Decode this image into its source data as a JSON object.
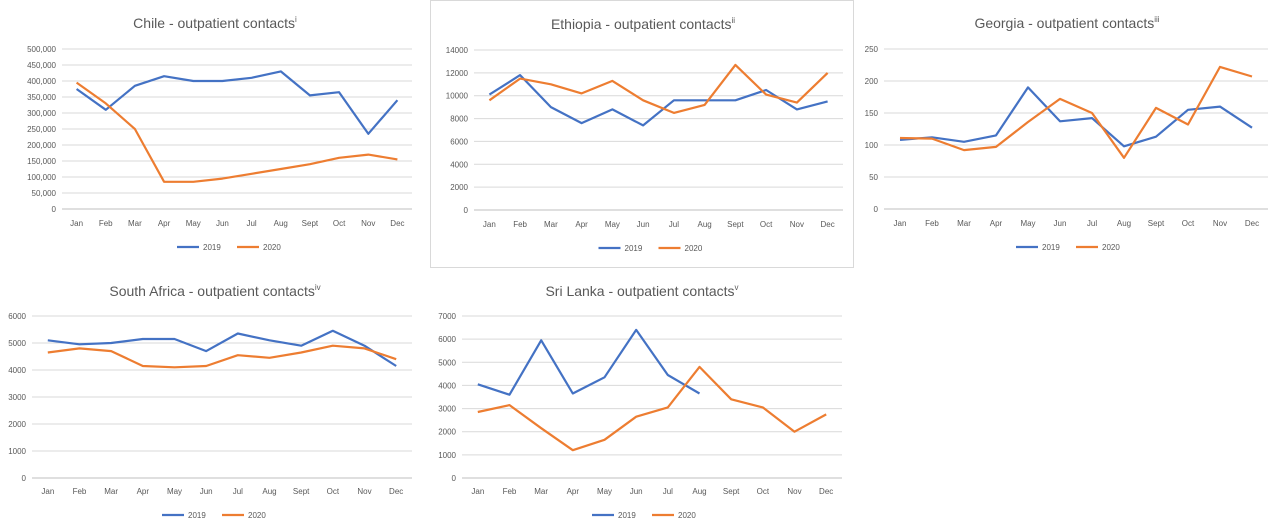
{
  "colors": {
    "s2019": "#4472c4",
    "s2020": "#ed7d31"
  },
  "chart_data": [
    {
      "type": "line",
      "title": "Chile - outpatient contacts",
      "title_sup": "i",
      "categories": [
        "Jan",
        "Feb",
        "Mar",
        "Apr",
        "May",
        "Jun",
        "Jul",
        "Aug",
        "Sept",
        "Oct",
        "Nov",
        "Dec"
      ],
      "ylim": [
        0,
        500000
      ],
      "yticks": [
        0,
        50000,
        100000,
        150000,
        200000,
        250000,
        300000,
        350000,
        400000,
        450000,
        500000
      ],
      "ytick_labels": [
        "0",
        "50,000",
        "100,000",
        "150,000",
        "200,000",
        "250,000",
        "300,000",
        "350,000",
        "400,000",
        "450,000",
        "500,000"
      ],
      "series": [
        {
          "name": "2019",
          "values": [
            375000,
            310000,
            385000,
            415000,
            400000,
            400000,
            410000,
            430000,
            355000,
            365000,
            235000,
            340000
          ]
        },
        {
          "name": "2020",
          "values": [
            395000,
            330000,
            250000,
            85000,
            85000,
            95000,
            110000,
            125000,
            140000,
            160000,
            170000,
            155000
          ]
        }
      ],
      "legend": "bottom",
      "grid": true
    },
    {
      "type": "line",
      "title": "Ethiopia - outpatient contacts",
      "title_sup": "ii",
      "categories": [
        "Jan",
        "Feb",
        "Mar",
        "Apr",
        "May",
        "Jun",
        "Jul",
        "Aug",
        "Sept",
        "Oct",
        "Nov",
        "Dec"
      ],
      "ylim": [
        0,
        14000
      ],
      "yticks": [
        0,
        2000,
        4000,
        6000,
        8000,
        10000,
        12000,
        14000
      ],
      "ytick_labels": [
        "0",
        "2000",
        "4000",
        "6000",
        "8000",
        "10000",
        "12000",
        "14000"
      ],
      "series": [
        {
          "name": "2019",
          "values": [
            10100,
            11800,
            9000,
            7600,
            8800,
            7400,
            9600,
            9600,
            9600,
            10500,
            8800,
            9500
          ]
        },
        {
          "name": "2020",
          "values": [
            9600,
            11500,
            11000,
            10200,
            11300,
            9600,
            8500,
            9200,
            12700,
            10100,
            9400,
            12000
          ]
        }
      ],
      "legend": "bottom",
      "grid": true
    },
    {
      "type": "line",
      "title": "Georgia - outpatient contacts",
      "title_sup": "iii",
      "categories": [
        "Jan",
        "Feb",
        "Mar",
        "Apr",
        "May",
        "Jun",
        "Jul",
        "Aug",
        "Sept",
        "Oct",
        "Nov",
        "Dec"
      ],
      "ylim": [
        0,
        250
      ],
      "yticks": [
        0,
        50,
        100,
        150,
        200,
        250
      ],
      "ytick_labels": [
        "0",
        "50",
        "100",
        "150",
        "200",
        "250"
      ],
      "series": [
        {
          "name": "2019",
          "values": [
            108,
            112,
            105,
            115,
            190,
            137,
            142,
            98,
            113,
            155,
            160,
            127
          ]
        },
        {
          "name": "2020",
          "values": [
            111,
            110,
            92,
            97,
            136,
            172,
            150,
            80,
            158,
            132,
            222,
            207
          ]
        }
      ],
      "legend": "bottom",
      "grid": true
    },
    {
      "type": "line",
      "title": "South Africa - outpatient contacts",
      "title_sup": "iv",
      "categories": [
        "Jan",
        "Feb",
        "Mar",
        "Apr",
        "May",
        "Jun",
        "Jul",
        "Aug",
        "Sept",
        "Oct",
        "Nov",
        "Dec"
      ],
      "ylim": [
        0,
        6000
      ],
      "yticks": [
        0,
        1000,
        2000,
        3000,
        4000,
        5000,
        6000
      ],
      "ytick_labels": [
        "0",
        "1000",
        "2000",
        "3000",
        "4000",
        "5000",
        "6000"
      ],
      "series": [
        {
          "name": "2019",
          "values": [
            5100,
            4950,
            5000,
            5150,
            5150,
            4700,
            5350,
            5100,
            4900,
            5450,
            4900,
            4150
          ]
        },
        {
          "name": "2020",
          "values": [
            4650,
            4800,
            4700,
            4150,
            4100,
            4150,
            4550,
            4450,
            4650,
            4900,
            4800,
            4400
          ]
        }
      ],
      "legend": "bottom",
      "grid": true
    },
    {
      "type": "line",
      "title": "Sri Lanka - outpatient contacts",
      "title_sup": "v",
      "categories": [
        "Jan",
        "Feb",
        "Mar",
        "Apr",
        "May",
        "Jun",
        "Jul",
        "Aug",
        "Sept",
        "Oct",
        "Nov",
        "Dec"
      ],
      "ylim": [
        0,
        7000
      ],
      "yticks": [
        0,
        1000,
        2000,
        3000,
        4000,
        5000,
        6000,
        7000
      ],
      "ytick_labels": [
        "0",
        "1000",
        "2000",
        "3000",
        "4000",
        "5000",
        "6000",
        "7000"
      ],
      "series": [
        {
          "name": "2019",
          "values": [
            4050,
            3600,
            5950,
            3650,
            4350,
            6400,
            4450,
            3650,
            null,
            null,
            null,
            null
          ]
        },
        {
          "name": "2020",
          "values": [
            2850,
            3150,
            2150,
            1200,
            1650,
            2650,
            3050,
            4800,
            3400,
            3050,
            2000,
            2750
          ]
        }
      ],
      "legend": "bottom",
      "grid": true
    }
  ]
}
